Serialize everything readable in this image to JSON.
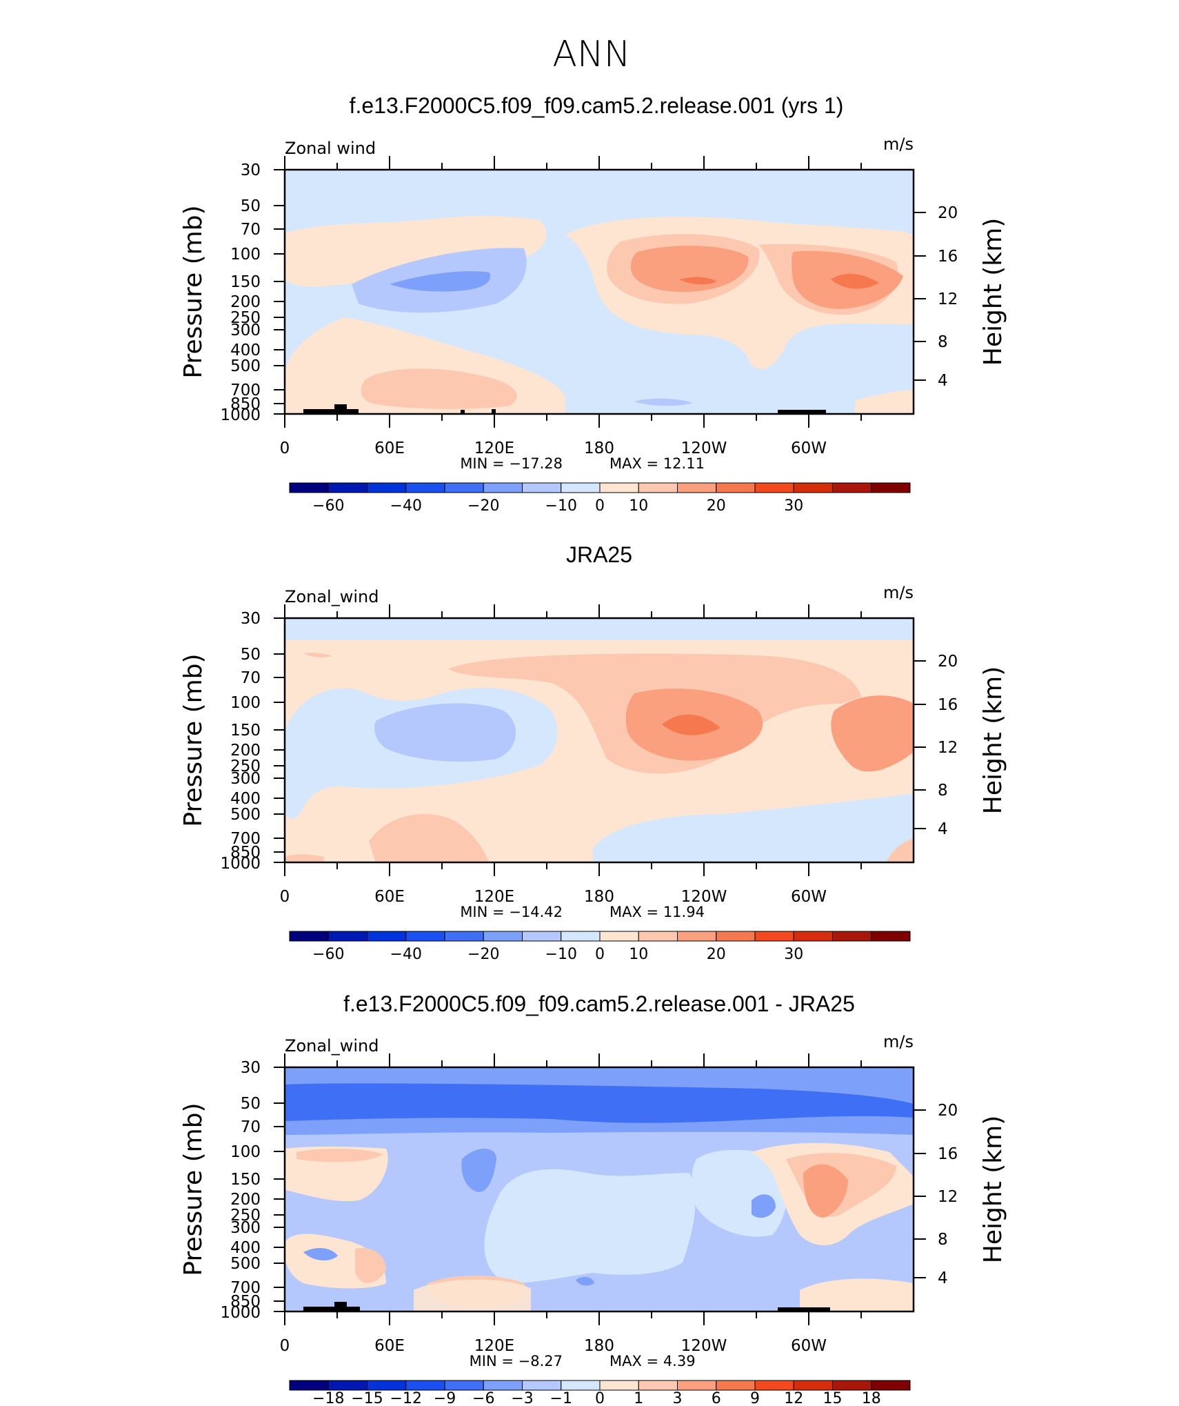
{
  "title": "ANN",
  "chart_data": [
    {
      "type": "heatmap",
      "title": "f.e13.F2000C5.f09_f09.cam5.2.release.001 (yrs 1)",
      "variable_label": "Zonal wind",
      "units": "m/s",
      "ylabel": "Pressure (mb)",
      "y2label": "Height (km)",
      "x_ticks": [
        "0",
        "60E",
        "120E",
        "180",
        "120W",
        "60W"
      ],
      "y_ticks": [
        "30",
        "50",
        "70",
        "100",
        "150",
        "200",
        "250",
        "300",
        "400",
        "500",
        "700",
        "850",
        "1000"
      ],
      "y2_ticks": [
        "20",
        "16",
        "12",
        "8",
        "4"
      ],
      "min_text": "MIN = −17.28",
      "max_text": "MAX = 12.11",
      "min": -17.28,
      "max": 12.11,
      "colorbar_labels": [
        "−60",
        "−40",
        "−20",
        "−10",
        "0",
        "10",
        "20",
        "30"
      ]
    },
    {
      "type": "heatmap",
      "title": "JRA25",
      "variable_label": "Zonal_wind",
      "units": "m/s",
      "ylabel": "Pressure (mb)",
      "y2label": "Height (km)",
      "x_ticks": [
        "0",
        "60E",
        "120E",
        "180",
        "120W",
        "60W"
      ],
      "y_ticks": [
        "30",
        "50",
        "70",
        "100",
        "150",
        "200",
        "250",
        "300",
        "400",
        "500",
        "700",
        "850",
        "1000"
      ],
      "y2_ticks": [
        "20",
        "16",
        "12",
        "8",
        "4"
      ],
      "min_text": "MIN = −14.42",
      "max_text": "MAX = 11.94",
      "min": -14.42,
      "max": 11.94,
      "colorbar_labels": [
        "−60",
        "−40",
        "−20",
        "−10",
        "0",
        "10",
        "20",
        "30"
      ]
    },
    {
      "type": "heatmap",
      "title": "f.e13.F2000C5.f09_f09.cam5.2.release.001 - JRA25",
      "variable_label": "Zonal_wind",
      "units": "m/s",
      "ylabel": "Pressure (mb)",
      "y2label": "Height (km)",
      "x_ticks": [
        "0",
        "60E",
        "120E",
        "180",
        "120W",
        "60W"
      ],
      "y_ticks": [
        "30",
        "50",
        "70",
        "100",
        "150",
        "200",
        "250",
        "300",
        "400",
        "500",
        "700",
        "850",
        "1000"
      ],
      "y2_ticks": [
        "20",
        "16",
        "12",
        "8",
        "4"
      ],
      "min_text": "MIN = −8.27",
      "max_text": "MAX = 4.39",
      "min": -8.27,
      "max": 4.39,
      "colorbar_labels": [
        "−18",
        "−15",
        "−12",
        "−9",
        "−6",
        "−3",
        "−1",
        "0",
        "1",
        "3",
        "6",
        "9",
        "12",
        "15",
        "18"
      ]
    }
  ],
  "colorbar_colors": [
    "#00007f",
    "#0019b2",
    "#0033d9",
    "#1a4ff0",
    "#3f6ff5",
    "#7da0fb",
    "#b4c8fd",
    "#d5e7fd",
    "#fde5d2",
    "#fcc9b0",
    "#fba07e",
    "#f6784f",
    "#f24a1e",
    "#d62e0c",
    "#a8170a",
    "#7f0000"
  ]
}
